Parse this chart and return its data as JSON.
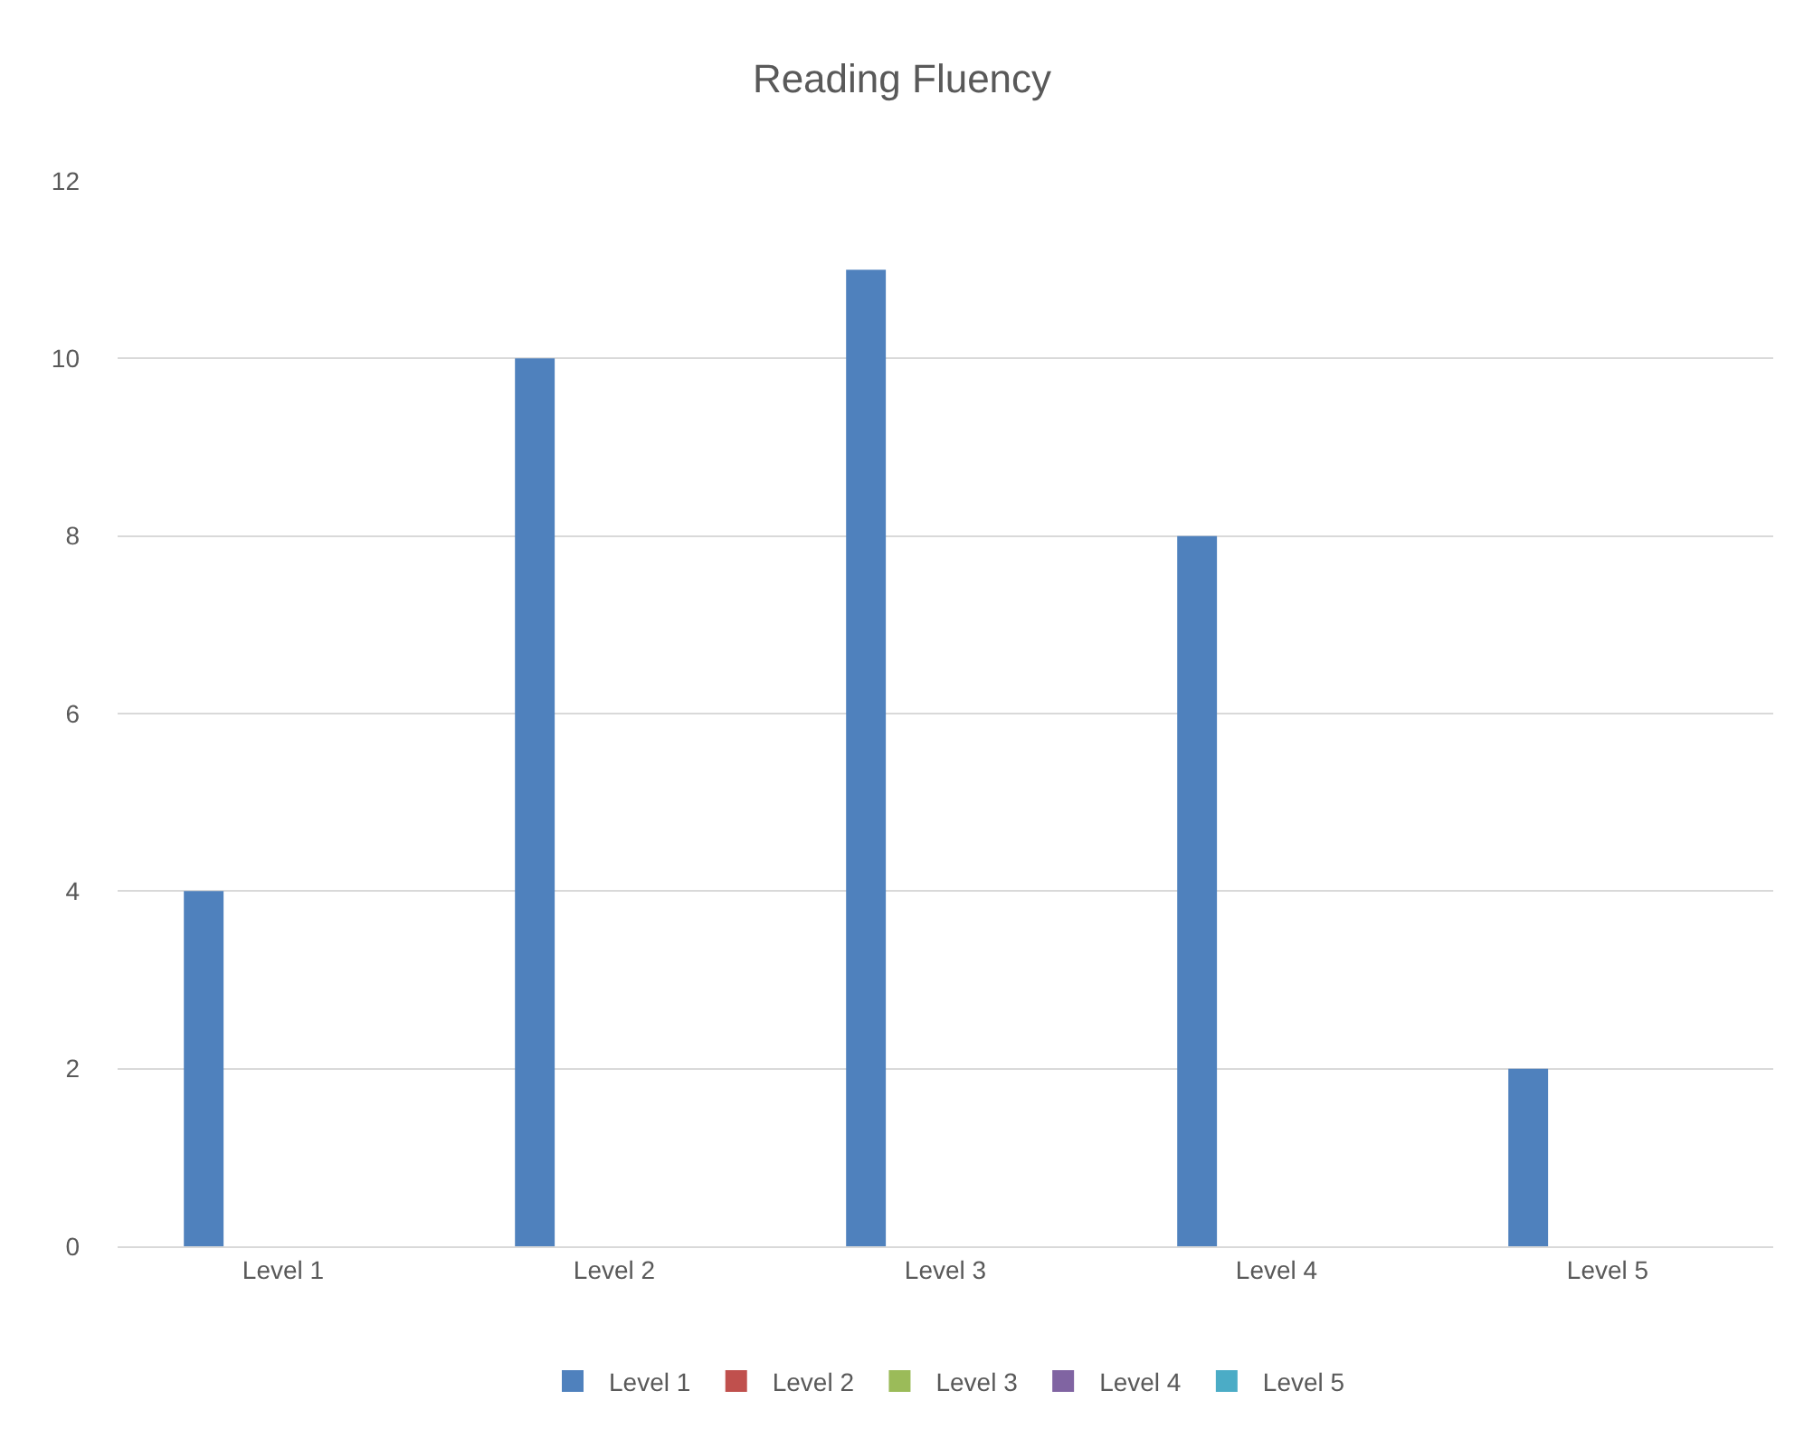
{
  "chart_data": {
    "type": "bar",
    "title": "Reading Fluency",
    "categories": [
      "Level 1",
      "Level 2",
      "Level 3",
      "Level 4",
      "Level 5"
    ],
    "series": [
      {
        "name": "Level 1",
        "color": "#4f81bd",
        "values": [
          4,
          10,
          11,
          8,
          2
        ]
      },
      {
        "name": "Level 2",
        "color": "#c0504d",
        "values": [
          null,
          null,
          null,
          null,
          null
        ]
      },
      {
        "name": "Level 3",
        "color": "#9bbb59",
        "values": [
          null,
          null,
          null,
          null,
          null
        ]
      },
      {
        "name": "Level 4",
        "color": "#8064a2",
        "values": [
          null,
          null,
          null,
          null,
          null
        ]
      },
      {
        "name": "Level 5",
        "color": "#4bacc6",
        "values": [
          null,
          null,
          null,
          null,
          null
        ]
      }
    ],
    "ylim": [
      0,
      12
    ],
    "yticks": [
      0,
      2,
      4,
      6,
      8,
      10,
      12
    ],
    "grid": "y",
    "legend": "bottom"
  }
}
